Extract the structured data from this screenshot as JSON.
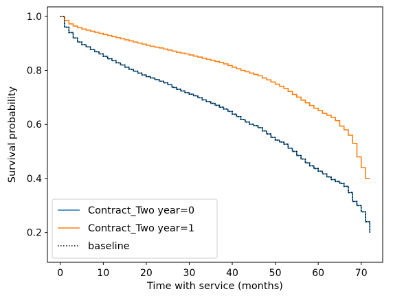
{
  "chart_data": {
    "type": "line",
    "xlabel": "Time with service (months)",
    "ylabel": "Survival probability",
    "xlim": [
      -3,
      75
    ],
    "ylim": [
      0.09,
      1.035
    ],
    "xticks": [
      0,
      10,
      20,
      30,
      40,
      50,
      60,
      70
    ],
    "yticks": [
      0.2,
      0.4,
      0.6,
      0.8,
      1.0
    ],
    "ytick_labels": [
      "0.2",
      "0.4",
      "0.6",
      "0.8",
      "1.0"
    ],
    "grid": false,
    "legend": {
      "placement": "lower-left"
    },
    "series": [
      {
        "name": "Contract_Two year=0",
        "color": "#1f77b4",
        "step": true,
        "x": [
          0,
          1,
          2,
          3,
          4,
          5,
          6,
          7,
          8,
          9,
          10,
          11,
          12,
          13,
          14,
          15,
          16,
          17,
          18,
          19,
          20,
          21,
          22,
          23,
          24,
          25,
          26,
          27,
          28,
          29,
          30,
          31,
          32,
          33,
          34,
          35,
          36,
          37,
          38,
          39,
          40,
          41,
          42,
          43,
          44,
          45,
          46,
          47,
          48,
          49,
          50,
          51,
          52,
          53,
          54,
          55,
          56,
          57,
          58,
          59,
          60,
          61,
          62,
          63,
          64,
          65,
          66,
          67,
          68,
          69,
          70,
          71,
          72
        ],
        "y": [
          1.0,
          0.96,
          0.94,
          0.92,
          0.905,
          0.895,
          0.887,
          0.877,
          0.869,
          0.861,
          0.852,
          0.843,
          0.836,
          0.828,
          0.82,
          0.812,
          0.804,
          0.797,
          0.79,
          0.783,
          0.777,
          0.772,
          0.766,
          0.76,
          0.754,
          0.747,
          0.737,
          0.73,
          0.724,
          0.718,
          0.712,
          0.706,
          0.699,
          0.691,
          0.685,
          0.678,
          0.671,
          0.664,
          0.657,
          0.648,
          0.638,
          0.629,
          0.618,
          0.609,
          0.601,
          0.596,
          0.588,
          0.576,
          0.565,
          0.552,
          0.542,
          0.535,
          0.527,
          0.512,
          0.5,
          0.485,
          0.472,
          0.458,
          0.447,
          0.437,
          0.427,
          0.417,
          0.406,
          0.396,
          0.389,
          0.382,
          0.371,
          0.348,
          0.315,
          0.3,
          0.277,
          0.24,
          0.2
        ]
      },
      {
        "name": "Contract_Two year=1",
        "color": "#ff7f0e",
        "step": true,
        "x": [
          0,
          1,
          2,
          3,
          4,
          5,
          6,
          7,
          8,
          9,
          10,
          11,
          12,
          13,
          14,
          15,
          16,
          17,
          18,
          19,
          20,
          21,
          22,
          23,
          24,
          25,
          26,
          27,
          28,
          29,
          30,
          31,
          32,
          33,
          34,
          35,
          36,
          37,
          38,
          39,
          40,
          41,
          42,
          43,
          44,
          45,
          46,
          47,
          48,
          49,
          50,
          51,
          52,
          53,
          54,
          55,
          56,
          57,
          58,
          59,
          60,
          61,
          62,
          63,
          64,
          65,
          66,
          67,
          68,
          69,
          70,
          71,
          72
        ],
        "y": [
          1.0,
          0.985,
          0.972,
          0.964,
          0.958,
          0.953,
          0.949,
          0.945,
          0.941,
          0.937,
          0.933,
          0.929,
          0.925,
          0.921,
          0.917,
          0.913,
          0.909,
          0.905,
          0.901,
          0.897,
          0.893,
          0.889,
          0.886,
          0.883,
          0.879,
          0.875,
          0.871,
          0.867,
          0.864,
          0.861,
          0.857,
          0.853,
          0.849,
          0.845,
          0.841,
          0.837,
          0.833,
          0.829,
          0.824,
          0.818,
          0.812,
          0.806,
          0.8,
          0.795,
          0.79,
          0.785,
          0.78,
          0.772,
          0.765,
          0.757,
          0.749,
          0.741,
          0.733,
          0.722,
          0.711,
          0.701,
          0.69,
          0.68,
          0.67,
          0.66,
          0.651,
          0.641,
          0.634,
          0.626,
          0.614,
          0.594,
          0.58,
          0.56,
          0.53,
          0.48,
          0.44,
          0.4,
          0.4
        ]
      },
      {
        "name": "baseline",
        "color": "#000000",
        "dash": "dotted",
        "follows_series": 0
      }
    ]
  }
}
